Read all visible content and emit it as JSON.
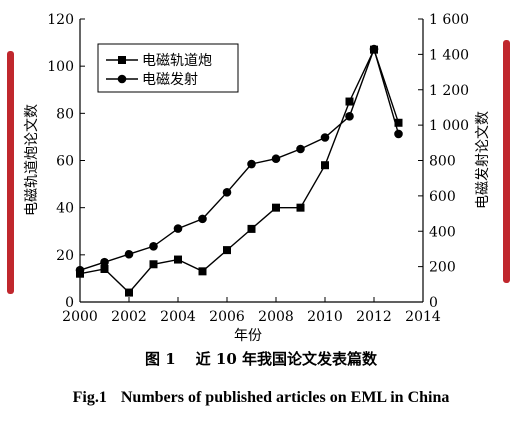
{
  "chart_data": {
    "type": "line",
    "x": [
      2000,
      2001,
      2002,
      2003,
      2004,
      2005,
      2006,
      2007,
      2008,
      2009,
      2010,
      2011,
      2012,
      2013
    ],
    "xlabel": "年份",
    "xlim": [
      2000,
      2014
    ],
    "xticks": [
      2000,
      2002,
      2004,
      2006,
      2008,
      2010,
      2012,
      2014
    ],
    "y_left": {
      "label": "电磁轨道炮论文数",
      "lim": [
        0,
        120
      ],
      "ticks": [
        0,
        20,
        40,
        60,
        80,
        100,
        120
      ]
    },
    "y_right": {
      "label": "电磁发射论文数",
      "lim": [
        0,
        1600
      ],
      "ticks": [
        0,
        200,
        400,
        600,
        800,
        1000,
        1200,
        1400,
        1600
      ],
      "tick_labels": [
        "0",
        "200",
        "400",
        "600",
        "800",
        "1 000",
        "1 200",
        "1 400",
        "1 600"
      ]
    },
    "series": [
      {
        "name": "电磁轨道炮",
        "axis": "left",
        "marker": "square",
        "values": [
          12,
          14,
          4,
          16,
          18,
          13,
          22,
          31,
          40,
          40,
          58,
          85,
          107,
          76
        ]
      },
      {
        "name": "电磁发射",
        "axis": "right",
        "marker": "circle",
        "values": [
          180,
          225,
          270,
          315,
          415,
          470,
          620,
          780,
          810,
          865,
          930,
          1050,
          1430,
          950
        ]
      }
    ],
    "legend": "top-left",
    "grid": false
  },
  "caption": {
    "cn_fig": "图 1",
    "cn_text": "近 10 年我国论文发表篇数",
    "en_fig": "Fig.1",
    "en_text": "Numbers of published articles on EML in China"
  },
  "colors": {
    "accent_bar": "#c0272d",
    "line": "#000000"
  }
}
